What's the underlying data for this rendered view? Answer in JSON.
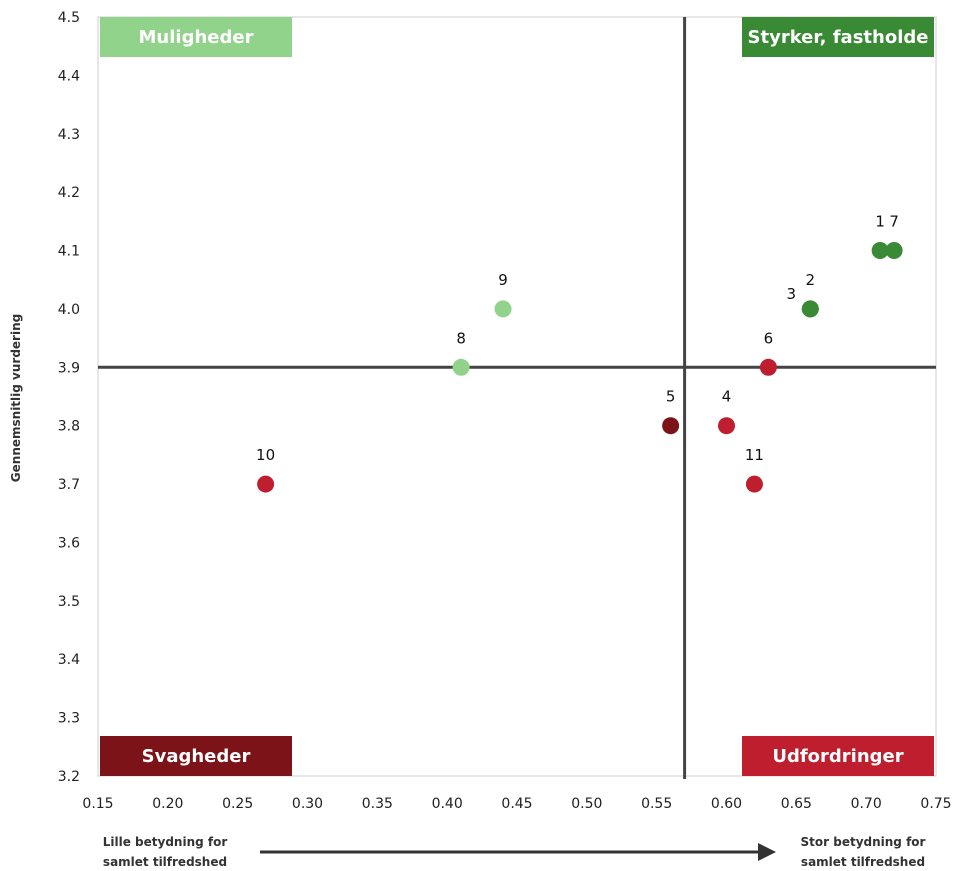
{
  "chart_data": {
    "type": "scatter",
    "title": "",
    "ylabel": "Gennemsnitlig vurdering",
    "xlabel_left": [
      "Lille betydning for",
      "samlet tilfredshed"
    ],
    "xlabel_right": [
      "Stor betydning for",
      "samlet tilfredshed"
    ],
    "xlim": [
      0.15,
      0.75
    ],
    "ylim": [
      3.2,
      4.5
    ],
    "xticks": [
      "0.15",
      "0.20",
      "0.25",
      "0.30",
      "0.35",
      "0.40",
      "0.45",
      "0.50",
      "0.55",
      "0.60",
      "0.65",
      "0.70",
      "0.75"
    ],
    "yticks": [
      "3.2",
      "3.3",
      "3.4",
      "3.5",
      "3.6",
      "3.7",
      "3.8",
      "3.9",
      "4.0",
      "4.1",
      "4.2",
      "4.3",
      "4.4",
      "4.5"
    ],
    "grid": false,
    "divider_x": 0.57,
    "divider_y": 3.9,
    "quadrants": [
      {
        "label": "Muligheder",
        "position": "top-left",
        "color": "#92d38c"
      },
      {
        "label": "Styrker, fastholde",
        "position": "top-right",
        "color": "#3a8a35"
      },
      {
        "label": "Svagheder",
        "position": "bottom-left",
        "color": "#7b1318"
      },
      {
        "label": "Udfordringer",
        "position": "bottom-right",
        "color": "#be1e2d"
      }
    ],
    "points": [
      {
        "label": "1",
        "x": 0.71,
        "y": 4.1,
        "color": "#3a8a35"
      },
      {
        "label": "7",
        "x": 0.72,
        "y": 4.1,
        "color": "#3a8a35"
      },
      {
        "label": "2",
        "x": 0.66,
        "y": 4.0,
        "color": "#3a8a35"
      },
      {
        "label": "3",
        "x": 0.66,
        "y": 4.0,
        "color": "#3a8a35"
      },
      {
        "label": "9",
        "x": 0.44,
        "y": 4.0,
        "color": "#92d38c"
      },
      {
        "label": "8",
        "x": 0.41,
        "y": 3.9,
        "color": "#92d38c"
      },
      {
        "label": "6",
        "x": 0.63,
        "y": 3.9,
        "color": "#be1e2d"
      },
      {
        "label": "5",
        "x": 0.56,
        "y": 3.8,
        "color": "#7b1318"
      },
      {
        "label": "4",
        "x": 0.6,
        "y": 3.8,
        "color": "#be1e2d"
      },
      {
        "label": "11",
        "x": 0.62,
        "y": 3.7,
        "color": "#be1e2d"
      },
      {
        "label": "10",
        "x": 0.27,
        "y": 3.7,
        "color": "#be1e2d"
      }
    ]
  }
}
